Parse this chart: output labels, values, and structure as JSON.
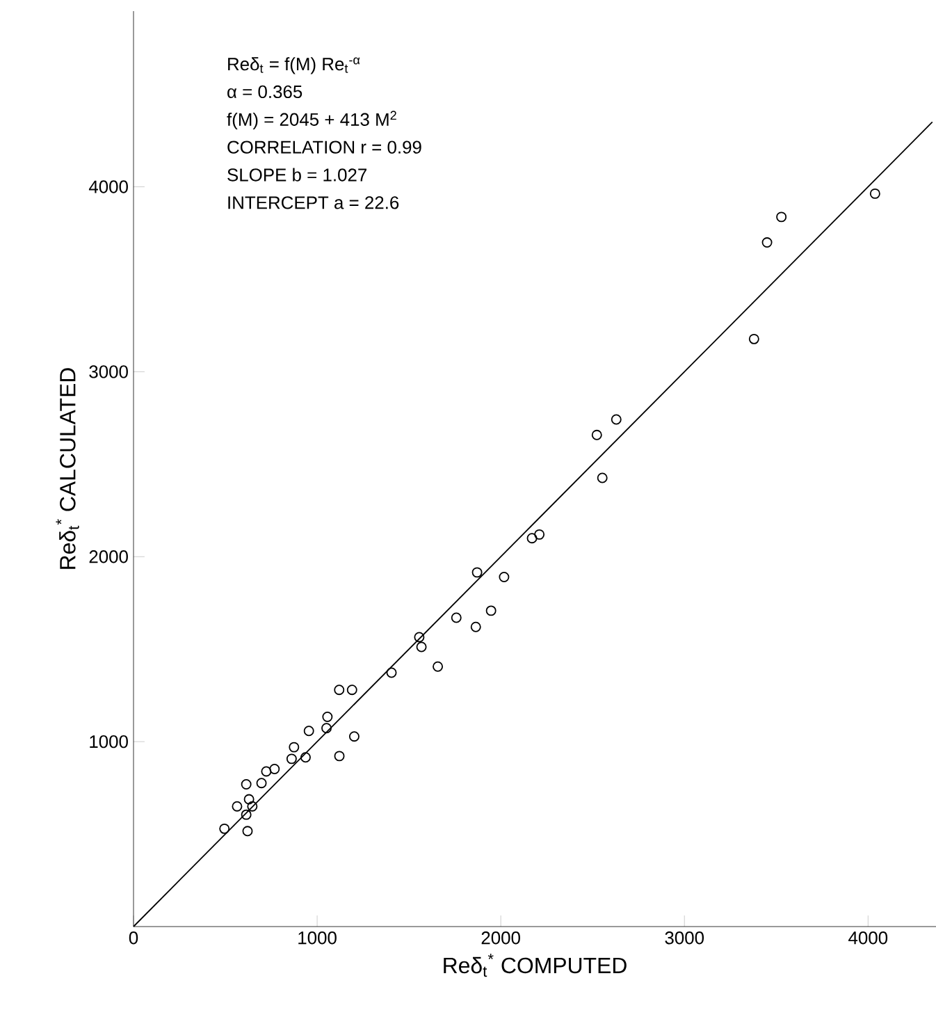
{
  "chart_data": {
    "type": "scatter",
    "xlabel": "Reδ$_{t}$$^{*}$ COMPUTED",
    "ylabel": "Reδ$_{t}$$^{*}$ CALCULATED",
    "xlim": [
      0,
      4370
    ],
    "ylim": [
      0,
      4950
    ],
    "xticks": [
      0,
      1000,
      2000,
      3000,
      4000
    ],
    "yticks": [
      1000,
      2000,
      3000,
      4000
    ],
    "annotations": [
      "Reδ$_{t}$ = f(M) Re$_{t}$$^{-α}$",
      "α = 0.365",
      "f(M) = 2045 + 413 M$^{2}$",
      "CORRELATION  r = 0.99",
      "SLOPE  b = 1.027",
      "INTERCEPT  a = 22.6"
    ],
    "series": [
      {
        "marker": "circle",
        "color": "#000000",
        "x": [
          495,
          621,
          614,
          564,
          647,
          629,
          614,
          697,
          723,
          768,
          861,
          874,
          937,
          955,
          1051,
          1056,
          1121,
          1202,
          1120,
          1190,
          1405,
          1556,
          1568,
          1657,
          1758,
          1864,
          1947,
          1871,
          2018,
          2170,
          2210,
          2553,
          2523,
          2629,
          3379,
          3450,
          3528,
          4038
        ],
        "values": [
          529,
          516,
          605,
          650,
          650,
          688,
          769,
          776,
          839,
          852,
          907,
          970,
          915,
          1058,
          1073,
          1134,
          922,
          1028,
          1280,
          1280,
          1373,
          1565,
          1512,
          1406,
          1670,
          1620,
          1708,
          1915,
          1890,
          2100,
          2120,
          2426,
          2658,
          2742,
          3177,
          3699,
          3837,
          3963
        ]
      },
      {
        "type": "line",
        "marker": "none",
        "line_style": "solid",
        "color": "#000000",
        "x": [
          0,
          4350
        ],
        "values": [
          0,
          4350
        ]
      }
    ]
  }
}
